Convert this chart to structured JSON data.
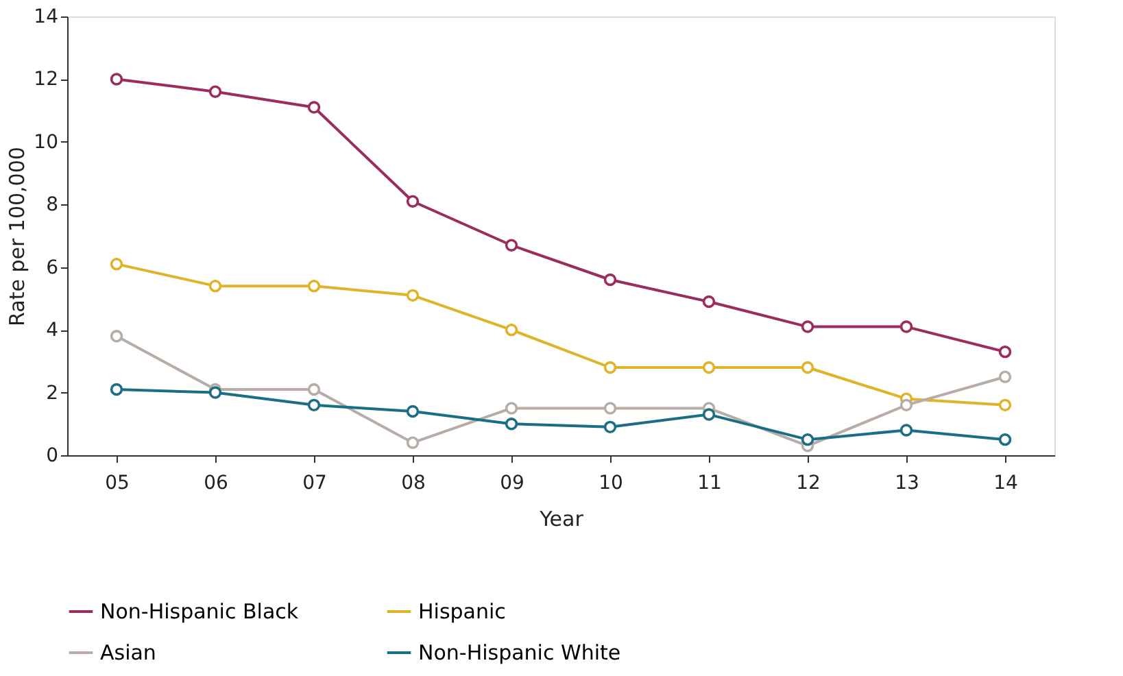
{
  "chart_data": {
    "type": "line",
    "xlabel": "Year",
    "ylabel": "Rate per 100,000",
    "categories": [
      "05",
      "06",
      "07",
      "08",
      "09",
      "10",
      "11",
      "12",
      "13",
      "14"
    ],
    "ylim": [
      0,
      14
    ],
    "yticks": [
      0,
      2,
      4,
      6,
      8,
      10,
      12,
      14
    ],
    "grid": false,
    "legend": "bottom",
    "marker": "circle",
    "line_style": "solid",
    "series": [
      {
        "name": "Non-Hispanic Black",
        "color": "#9b2d5e",
        "values": [
          12.0,
          11.6,
          11.1,
          8.1,
          6.7,
          5.6,
          4.9,
          4.1,
          4.1,
          3.3
        ]
      },
      {
        "name": "Hispanic",
        "color": "#e0b42a",
        "values": [
          6.1,
          5.4,
          5.4,
          5.1,
          4.0,
          2.8,
          2.8,
          2.8,
          1.8,
          1.6
        ]
      },
      {
        "name": "Asian",
        "color": "#b8aca6",
        "values": [
          3.8,
          2.1,
          2.1,
          0.4,
          1.5,
          1.5,
          1.5,
          0.3,
          1.6,
          2.5
        ]
      },
      {
        "name": "Non-Hispanic White",
        "color": "#1a6e85",
        "values": [
          2.1,
          2.0,
          1.6,
          1.4,
          1.0,
          0.9,
          1.3,
          0.5,
          0.8,
          0.5
        ]
      }
    ]
  }
}
